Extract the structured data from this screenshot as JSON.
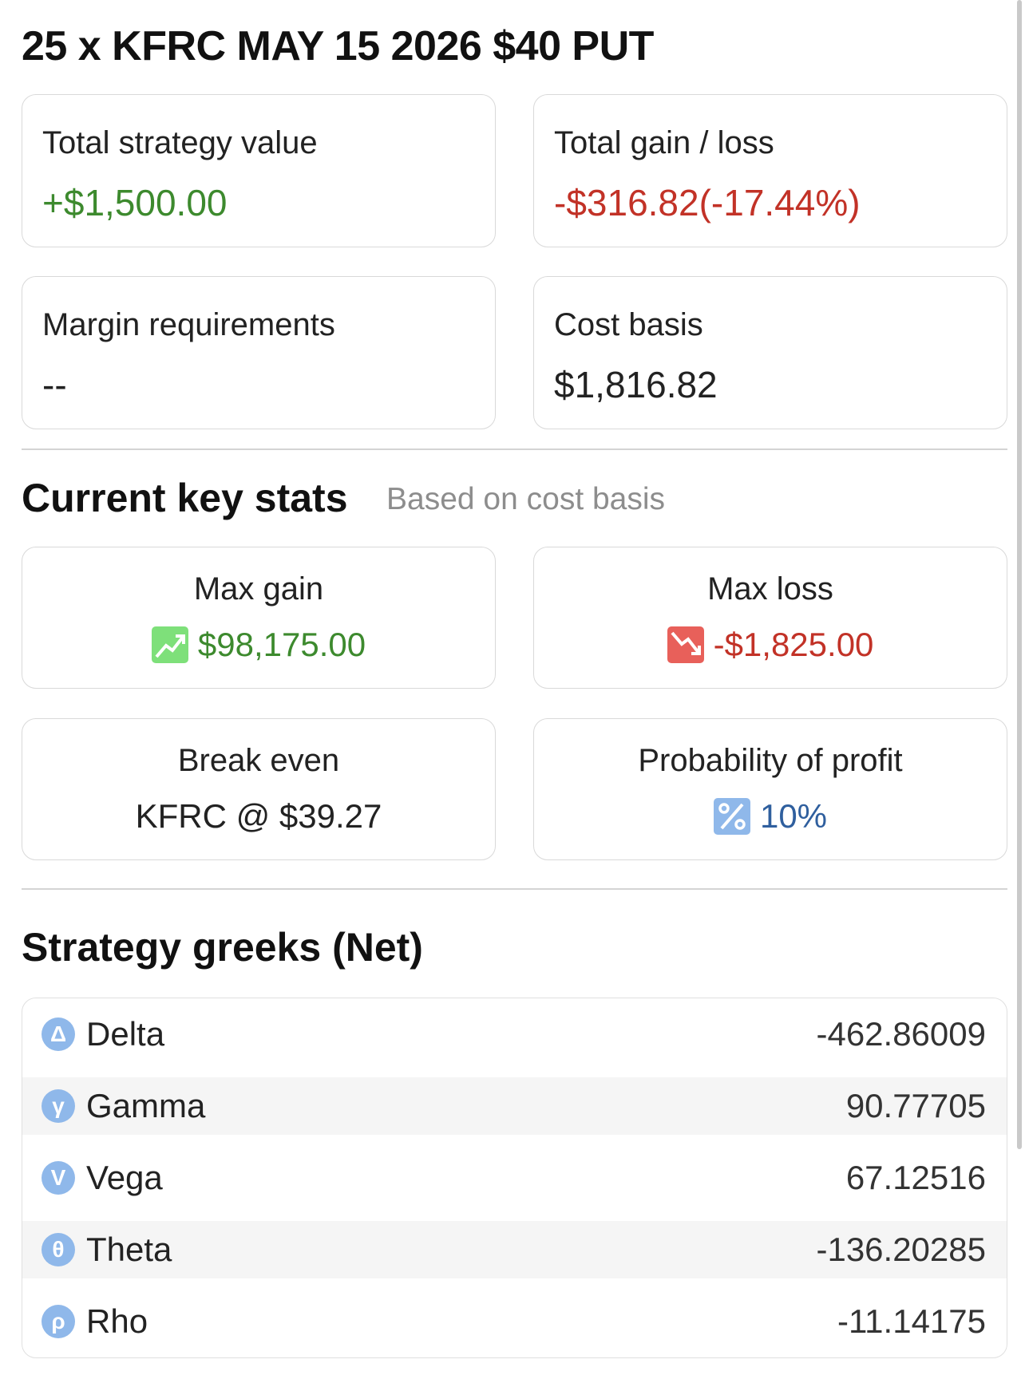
{
  "title": "25 x KFRC MAY 15 2026 $40 PUT",
  "summary": {
    "total_value_label": "Total strategy value",
    "total_value": "+$1,500.00",
    "gain_loss_label": "Total gain / loss",
    "gain_loss": "-$316.82(-17.44%)",
    "margin_label": "Margin requirements",
    "margin": "--",
    "cost_basis_label": "Cost basis",
    "cost_basis": "$1,816.82"
  },
  "key_stats": {
    "title": "Current key stats",
    "subtitle": "Based on cost basis",
    "max_gain_label": "Max gain",
    "max_gain": "$98,175.00",
    "max_loss_label": "Max loss",
    "max_loss": "-$1,825.00",
    "break_even_label": "Break even",
    "break_even": "KFRC @ $39.27",
    "prob_label": "Probability of profit",
    "prob": "10%"
  },
  "greeks": {
    "title": "Strategy greeks (Net)",
    "rows": [
      {
        "name": "Delta",
        "symbol": "Δ",
        "value": "-462.86009"
      },
      {
        "name": "Gamma",
        "symbol": "γ",
        "value": "90.77705"
      },
      {
        "name": "Vega",
        "symbol": "V",
        "value": "67.12516"
      },
      {
        "name": "Theta",
        "symbol": "θ",
        "value": "-136.20285"
      },
      {
        "name": "Rho",
        "symbol": "ρ",
        "value": "-11.14175"
      }
    ]
  },
  "colors": {
    "positive": "#3d8a2e",
    "negative": "#c23227",
    "neutral_blue": "#2f5f9e",
    "greek_icon": "#8fb8ea"
  },
  "icons": {
    "max_gain": "trend-up-icon",
    "max_loss": "trend-down-icon",
    "probability": "percent-icon"
  }
}
